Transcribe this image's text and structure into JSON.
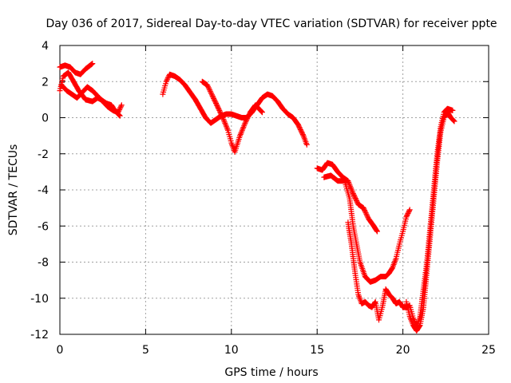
{
  "chart_data": {
    "type": "scatter",
    "title": "Day 036 of 2017, Sidereal Day-to-day VTEC variation (SDTVAR) for receiver ppte",
    "xlabel": "GPS time / hours",
    "ylabel": "SDTVAR / TECUs",
    "xlim": [
      0,
      25
    ],
    "ylim": [
      -12,
      4
    ],
    "x_ticks": [
      "0",
      "5",
      "10",
      "15",
      "20",
      "25"
    ],
    "y_ticks": [
      "4",
      "2",
      "0",
      "-2",
      "-4",
      "-6",
      "-8",
      "-10",
      "-12"
    ],
    "grid": true,
    "marker": "+",
    "color": "#ff0000",
    "series": [
      {
        "points": [
          [
            0,
            2.8
          ],
          [
            0.3,
            2.9
          ],
          [
            0.6,
            2.8
          ],
          [
            0.9,
            2.5
          ],
          [
            1.2,
            2.4
          ],
          [
            1.5,
            2.7
          ],
          [
            1.9,
            3.0
          ]
        ]
      },
      {
        "points": [
          [
            0.0,
            1.5
          ],
          [
            0.2,
            2.3
          ],
          [
            0.5,
            2.5
          ],
          [
            0.8,
            2.0
          ],
          [
            1.1,
            1.5
          ],
          [
            1.5,
            1.0
          ],
          [
            1.9,
            0.9
          ],
          [
            2.2,
            1.1
          ],
          [
            2.4,
            1.0
          ],
          [
            2.7,
            0.8
          ],
          [
            3.0,
            0.7
          ],
          [
            3.2,
            0.4
          ],
          [
            3.5,
            0.1
          ]
        ]
      },
      {
        "points": [
          [
            0.1,
            1.8
          ],
          [
            0.4,
            1.5
          ],
          [
            0.7,
            1.3
          ],
          [
            1.0,
            1.1
          ],
          [
            1.3,
            1.4
          ],
          [
            1.6,
            1.7
          ],
          [
            1.9,
            1.5
          ],
          [
            2.2,
            1.2
          ],
          [
            2.5,
            0.9
          ],
          [
            2.8,
            0.6
          ],
          [
            3.1,
            0.4
          ],
          [
            3.4,
            0.3
          ],
          [
            3.6,
            0.7
          ]
        ]
      },
      {
        "points": [
          [
            6.0,
            1.3
          ],
          [
            6.2,
            2.0
          ],
          [
            6.4,
            2.4
          ],
          [
            6.7,
            2.3
          ],
          [
            7.0,
            2.1
          ],
          [
            7.3,
            1.8
          ],
          [
            7.6,
            1.4
          ],
          [
            7.9,
            1.0
          ],
          [
            8.2,
            0.5
          ],
          [
            8.5,
            0.0
          ],
          [
            8.8,
            -0.3
          ],
          [
            9.1,
            -0.1
          ],
          [
            9.4,
            0.1
          ],
          [
            9.7,
            0.2
          ],
          [
            10.0,
            0.2
          ],
          [
            10.3,
            0.1
          ],
          [
            10.6,
            0.0
          ],
          [
            10.9,
            0.0
          ],
          [
            11.2,
            0.3
          ],
          [
            11.5,
            0.7
          ],
          [
            11.8,
            1.1
          ],
          [
            12.1,
            1.3
          ],
          [
            12.4,
            1.2
          ],
          [
            12.7,
            0.9
          ],
          [
            13.0,
            0.5
          ],
          [
            13.3,
            0.2
          ],
          [
            13.6,
            0.0
          ],
          [
            13.9,
            -0.4
          ],
          [
            14.2,
            -1.0
          ],
          [
            14.4,
            -1.5
          ]
        ]
      },
      {
        "points": [
          [
            8.3,
            2.0
          ],
          [
            8.6,
            1.8
          ],
          [
            8.9,
            1.2
          ],
          [
            9.2,
            0.6
          ],
          [
            9.5,
            0.0
          ],
          [
            9.8,
            -0.7
          ],
          [
            10.0,
            -1.4
          ],
          [
            10.2,
            -1.9
          ],
          [
            10.5,
            -1.0
          ],
          [
            10.8,
            -0.3
          ],
          [
            11.1,
            0.3
          ],
          [
            11.4,
            0.7
          ],
          [
            11.6,
            0.5
          ],
          [
            11.8,
            0.3
          ]
        ]
      },
      {
        "points": [
          [
            15.0,
            -2.8
          ],
          [
            15.3,
            -2.9
          ],
          [
            15.6,
            -2.5
          ],
          [
            15.9,
            -2.6
          ],
          [
            16.2,
            -3.0
          ],
          [
            16.5,
            -3.3
          ],
          [
            16.8,
            -3.5
          ],
          [
            17.1,
            -4.2
          ],
          [
            17.4,
            -4.8
          ],
          [
            17.7,
            -5.0
          ],
          [
            18.0,
            -5.6
          ],
          [
            18.3,
            -6.0
          ],
          [
            18.5,
            -6.3
          ]
        ]
      },
      {
        "points": [
          [
            15.4,
            -3.3
          ],
          [
            15.8,
            -3.2
          ],
          [
            16.2,
            -3.5
          ],
          [
            16.6,
            -3.5
          ],
          [
            16.9,
            -4.5
          ],
          [
            17.1,
            -6.0
          ],
          [
            17.3,
            -7.0
          ],
          [
            17.5,
            -8.0
          ],
          [
            17.8,
            -8.8
          ],
          [
            18.1,
            -9.1
          ],
          [
            18.4,
            -9.0
          ],
          [
            18.7,
            -8.8
          ],
          [
            19.0,
            -8.8
          ],
          [
            19.2,
            -8.6
          ],
          [
            19.4,
            -8.3
          ],
          [
            19.6,
            -7.8
          ],
          [
            19.8,
            -7.0
          ],
          [
            20.0,
            -6.3
          ],
          [
            20.2,
            -5.5
          ],
          [
            20.4,
            -5.1
          ]
        ]
      },
      {
        "points": [
          [
            16.8,
            -5.8
          ],
          [
            17.0,
            -7.0
          ],
          [
            17.2,
            -8.5
          ],
          [
            17.4,
            -9.8
          ],
          [
            17.6,
            -10.3
          ],
          [
            17.8,
            -10.2
          ],
          [
            18.0,
            -10.4
          ],
          [
            18.2,
            -10.5
          ],
          [
            18.4,
            -10.2
          ],
          [
            18.6,
            -11.2
          ],
          [
            18.8,
            -10.5
          ],
          [
            19.0,
            -9.5
          ],
          [
            19.2,
            -9.8
          ],
          [
            19.4,
            -10.0
          ],
          [
            19.6,
            -10.3
          ],
          [
            19.8,
            -10.2
          ],
          [
            20.0,
            -10.5
          ],
          [
            20.2,
            -10.5
          ],
          [
            20.4,
            -10.4
          ],
          [
            20.6,
            -11.1
          ],
          [
            20.8,
            -11.6
          ],
          [
            21.0,
            -11.0
          ],
          [
            21.2,
            -9.5
          ],
          [
            21.4,
            -8.0
          ],
          [
            21.6,
            -6.0
          ],
          [
            21.8,
            -4.0
          ],
          [
            22.0,
            -2.0
          ],
          [
            22.2,
            -0.5
          ],
          [
            22.4,
            0.3
          ],
          [
            22.6,
            0.5
          ],
          [
            22.9,
            0.4
          ]
        ]
      },
      {
        "points": [
          [
            20.2,
            -10.2
          ],
          [
            20.4,
            -11.0
          ],
          [
            20.6,
            -11.5
          ],
          [
            20.8,
            -11.8
          ],
          [
            21.0,
            -11.5
          ],
          [
            21.2,
            -10.5
          ],
          [
            21.4,
            -8.5
          ],
          [
            21.6,
            -6.5
          ],
          [
            21.8,
            -4.5
          ],
          [
            22.0,
            -2.5
          ],
          [
            22.2,
            -0.8
          ],
          [
            22.4,
            0.0
          ],
          [
            22.6,
            0.3
          ],
          [
            22.8,
            0.0
          ],
          [
            23.0,
            -0.2
          ]
        ]
      }
    ]
  }
}
